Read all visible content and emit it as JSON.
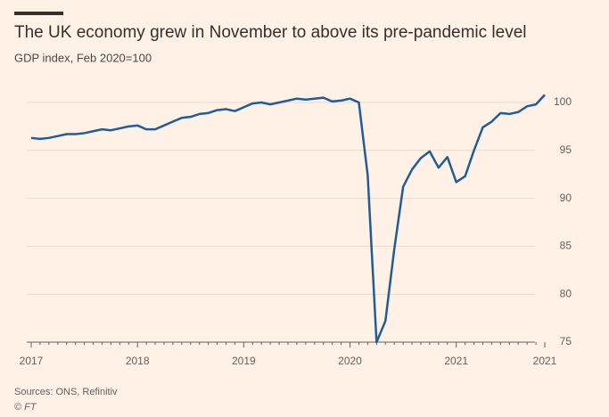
{
  "chart_data": {
    "type": "line",
    "title": "The UK economy grew in November to above its pre-pandemic level",
    "subtitle": "GDP index, Feb 2020=100",
    "source": "Sources: ONS, Refinitiv",
    "credit": "© FT",
    "categories": [
      "2017",
      null,
      null,
      null,
      null,
      null,
      null,
      null,
      null,
      null,
      null,
      null,
      "2018",
      null,
      null,
      null,
      null,
      null,
      null,
      null,
      null,
      null,
      null,
      null,
      "2019",
      null,
      null,
      null,
      null,
      null,
      null,
      null,
      null,
      null,
      null,
      null,
      "2020",
      null,
      null,
      null,
      null,
      null,
      null,
      null,
      null,
      null,
      null,
      null,
      "2021",
      null,
      null,
      null,
      null,
      null,
      null,
      null,
      null,
      null,
      "2021"
    ],
    "series": [
      {
        "name": "GDP index",
        "color": "#1f5c99",
        "values": [
          96.3,
          96.2,
          96.3,
          96.5,
          96.7,
          96.7,
          96.8,
          97.0,
          97.2,
          97.1,
          97.3,
          97.5,
          97.6,
          97.2,
          97.2,
          97.6,
          98.0,
          98.4,
          98.5,
          98.8,
          98.9,
          99.2,
          99.3,
          99.1,
          99.5,
          99.9,
          100.0,
          99.8,
          100.0,
          100.2,
          100.4,
          100.3,
          100.4,
          100.5,
          100.1,
          100.2,
          100.4,
          100.0,
          92.4,
          75.0,
          77.2,
          84.7,
          91.2,
          93.0,
          94.2,
          94.9,
          93.2,
          94.3,
          91.7,
          92.3,
          95.0,
          97.4,
          98.0,
          98.9,
          98.8,
          99.0,
          99.6,
          99.8,
          100.8
        ]
      }
    ],
    "ylim": [
      75,
      102
    ],
    "yticks": [
      75,
      80,
      85,
      90,
      95,
      100
    ],
    "grid": true
  }
}
